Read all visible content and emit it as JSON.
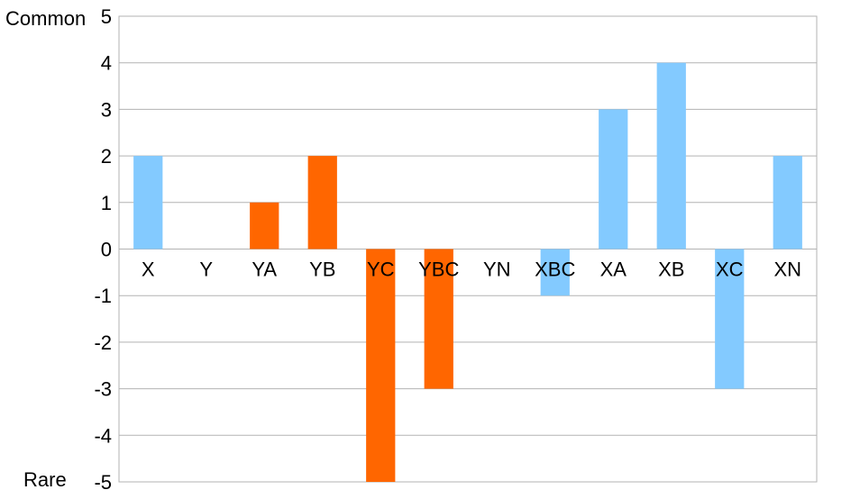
{
  "chart_data": {
    "type": "bar",
    "categories": [
      "X",
      "Y",
      "YA",
      "YB",
      "YC",
      "YBC",
      "YN",
      "XBC",
      "XA",
      "XB",
      "XC",
      "XN"
    ],
    "values": [
      2,
      0,
      1,
      2,
      -5,
      -3,
      0,
      -1,
      3,
      4,
      -3,
      2
    ],
    "group": [
      "x",
      "y",
      "y",
      "y",
      "y",
      "y",
      "y",
      "x",
      "x",
      "x",
      "x",
      "x"
    ],
    "colors": {
      "x": "#83caff",
      "y": "#ff6600"
    },
    "ylim": [
      -5,
      5
    ],
    "yticks": [
      5,
      4,
      3,
      2,
      1,
      0,
      -1,
      -2,
      -3,
      -4,
      -5
    ],
    "scale_labels": {
      "top": "Common",
      "bottom": "Rare"
    },
    "grid": true,
    "legend": "none"
  }
}
